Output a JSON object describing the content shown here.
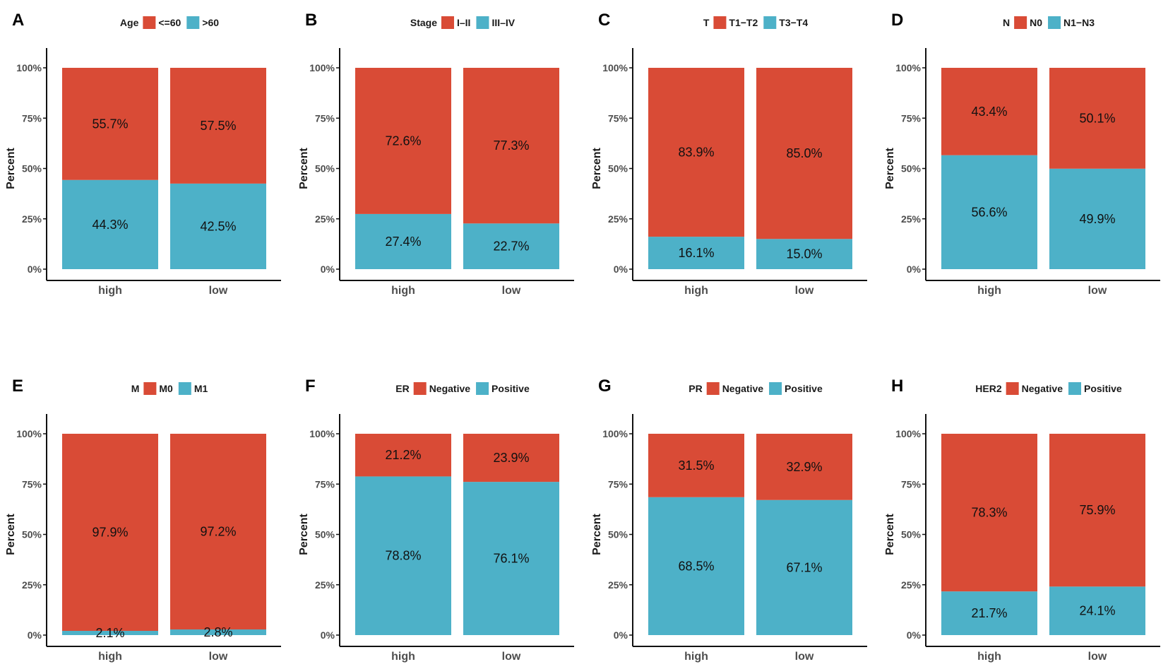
{
  "colors": {
    "upper": "#D94B36",
    "lower": "#4DB1C8",
    "axis": "#111111"
  },
  "chart_data": [
    {
      "panel": "A",
      "type": "bar",
      "stacked": true,
      "title": "",
      "legend_title": "Age",
      "categories": [
        "high",
        "low"
      ],
      "ylabel": "Percent",
      "ylim": [
        0,
        100
      ],
      "yticks": [
        "0%",
        "25%",
        "50%",
        "75%",
        "100%"
      ],
      "legend_position": "top-center",
      "series": [
        {
          "name": "<=60",
          "values": [
            55.7,
            57.5
          ],
          "labels": [
            "55.7%",
            "57.5%"
          ]
        },
        {
          "name": ">60",
          "values": [
            44.3,
            42.5
          ],
          "labels": [
            "44.3%",
            "42.5%"
          ]
        }
      ]
    },
    {
      "panel": "B",
      "type": "bar",
      "stacked": true,
      "title": "",
      "legend_title": "Stage",
      "categories": [
        "high",
        "low"
      ],
      "ylabel": "Percent",
      "ylim": [
        0,
        100
      ],
      "yticks": [
        "0%",
        "25%",
        "50%",
        "75%",
        "100%"
      ],
      "legend_position": "top-center",
      "series": [
        {
          "name": "I–II",
          "values": [
            72.6,
            77.3
          ],
          "labels": [
            "72.6%",
            "77.3%"
          ]
        },
        {
          "name": "III–IV",
          "values": [
            27.4,
            22.7
          ],
          "labels": [
            "27.4%",
            "22.7%"
          ]
        }
      ]
    },
    {
      "panel": "C",
      "type": "bar",
      "stacked": true,
      "title": "",
      "legend_title": "T",
      "categories": [
        "high",
        "low"
      ],
      "ylabel": "Percent",
      "ylim": [
        0,
        100
      ],
      "yticks": [
        "0%",
        "25%",
        "50%",
        "75%",
        "100%"
      ],
      "legend_position": "top-center",
      "series": [
        {
          "name": "T1−T2",
          "values": [
            83.9,
            85.0
          ],
          "labels": [
            "83.9%",
            "85.0%"
          ]
        },
        {
          "name": "T3−T4",
          "values": [
            16.1,
            15.0
          ],
          "labels": [
            "16.1%",
            "15.0%"
          ]
        }
      ]
    },
    {
      "panel": "D",
      "type": "bar",
      "stacked": true,
      "title": "",
      "legend_title": "N",
      "categories": [
        "high",
        "low"
      ],
      "ylabel": "Percent",
      "ylim": [
        0,
        100
      ],
      "yticks": [
        "0%",
        "25%",
        "50%",
        "75%",
        "100%"
      ],
      "legend_position": "top-center",
      "series": [
        {
          "name": "N0",
          "values": [
            43.4,
            50.1
          ],
          "labels": [
            "43.4%",
            "50.1%"
          ]
        },
        {
          "name": "N1−N3",
          "values": [
            56.6,
            49.9
          ],
          "labels": [
            "56.6%",
            "49.9%"
          ]
        }
      ]
    },
    {
      "panel": "E",
      "type": "bar",
      "stacked": true,
      "title": "",
      "legend_title": "M",
      "categories": [
        "high",
        "low"
      ],
      "ylabel": "Percent",
      "ylim": [
        0,
        100
      ],
      "yticks": [
        "0%",
        "25%",
        "50%",
        "75%",
        "100%"
      ],
      "legend_position": "top-center",
      "series": [
        {
          "name": "M0",
          "values": [
            97.9,
            97.2
          ],
          "labels": [
            "97.9%",
            "97.2%"
          ]
        },
        {
          "name": "M1",
          "values": [
            2.1,
            2.8
          ],
          "labels": [
            "2.1%",
            "2.8%"
          ]
        }
      ]
    },
    {
      "panel": "F",
      "type": "bar",
      "stacked": true,
      "title": "",
      "legend_title": "ER",
      "categories": [
        "high",
        "low"
      ],
      "ylabel": "Percent",
      "ylim": [
        0,
        100
      ],
      "yticks": [
        "0%",
        "25%",
        "50%",
        "75%",
        "100%"
      ],
      "legend_position": "top-center",
      "series": [
        {
          "name": "Negative",
          "values": [
            21.2,
            23.9
          ],
          "labels": [
            "21.2%",
            "23.9%"
          ]
        },
        {
          "name": "Positive",
          "values": [
            78.8,
            76.1
          ],
          "labels": [
            "78.8%",
            "76.1%"
          ]
        }
      ]
    },
    {
      "panel": "G",
      "type": "bar",
      "stacked": true,
      "title": "",
      "legend_title": "PR",
      "categories": [
        "high",
        "low"
      ],
      "ylabel": "Percent",
      "ylim": [
        0,
        100
      ],
      "yticks": [
        "0%",
        "25%",
        "50%",
        "75%",
        "100%"
      ],
      "legend_position": "top-center",
      "series": [
        {
          "name": "Negative",
          "values": [
            31.5,
            32.9
          ],
          "labels": [
            "31.5%",
            "32.9%"
          ]
        },
        {
          "name": "Positive",
          "values": [
            68.5,
            67.1
          ],
          "labels": [
            "68.5%",
            "67.1%"
          ]
        }
      ]
    },
    {
      "panel": "H",
      "type": "bar",
      "stacked": true,
      "title": "",
      "legend_title": "HER2",
      "categories": [
        "high",
        "low"
      ],
      "ylabel": "Percent",
      "ylim": [
        0,
        100
      ],
      "yticks": [
        "0%",
        "25%",
        "50%",
        "75%",
        "100%"
      ],
      "legend_position": "top-center",
      "series": [
        {
          "name": "Negative",
          "values": [
            78.3,
            75.9
          ],
          "labels": [
            "78.3%",
            "75.9%"
          ]
        },
        {
          "name": "Positive",
          "values": [
            21.7,
            24.1
          ],
          "labels": [
            "21.7%",
            "24.1%"
          ]
        }
      ]
    }
  ]
}
